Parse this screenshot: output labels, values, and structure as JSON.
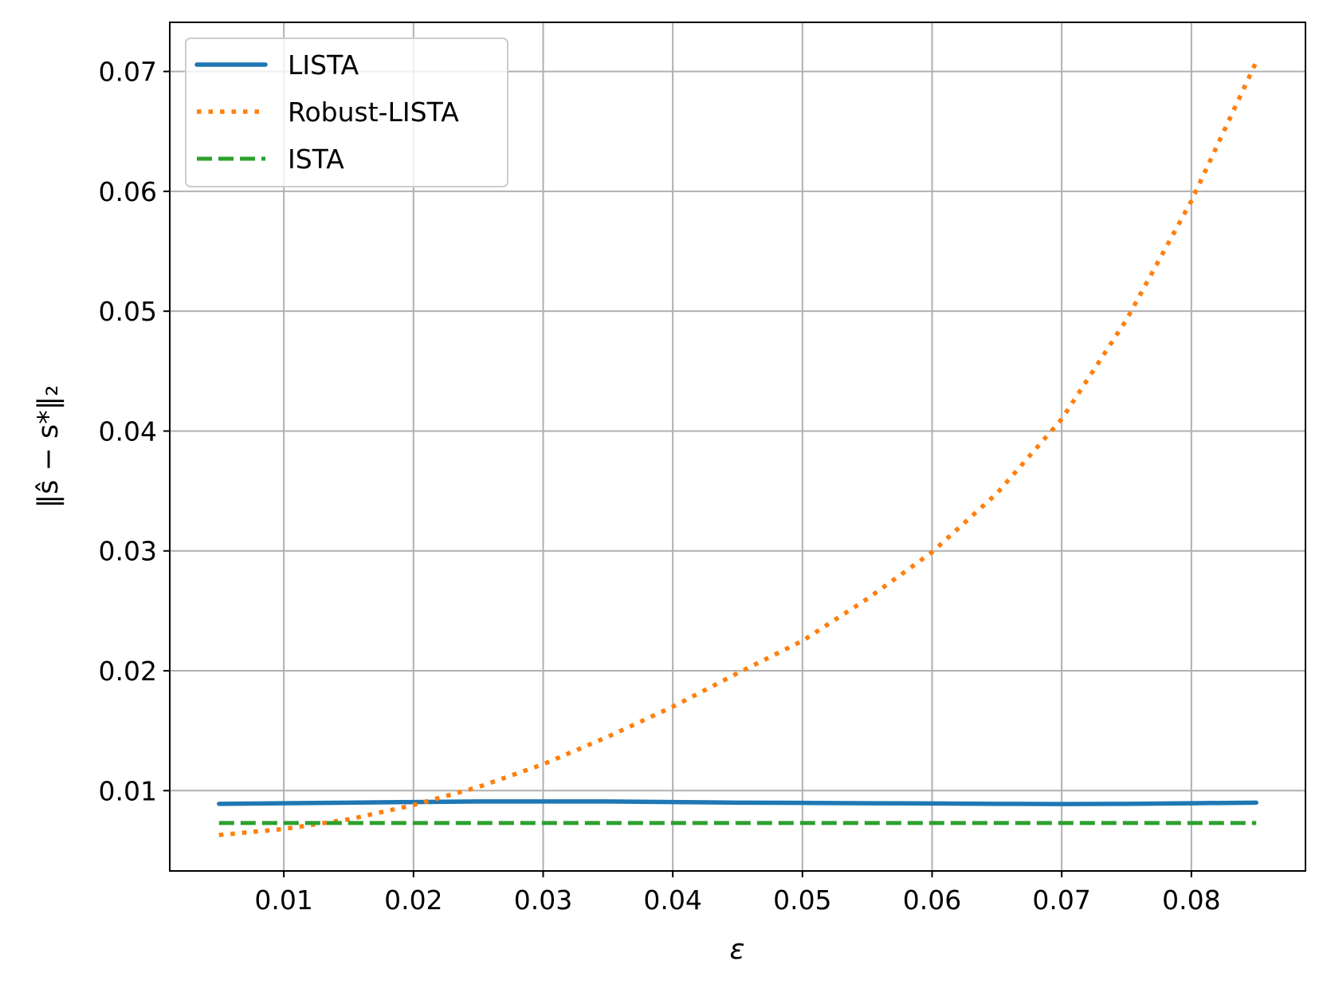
{
  "chart_data": {
    "type": "line",
    "xlabel": "ε",
    "ylabel": "‖ŝ − s*‖₂",
    "xlim": [
      0.0012,
      0.0888
    ],
    "ylim": [
      0.0033,
      0.0741
    ],
    "xticks": [
      0.01,
      0.02,
      0.03,
      0.04,
      0.05,
      0.06,
      0.07,
      0.08
    ],
    "xtick_labels": [
      "0.01",
      "0.02",
      "0.03",
      "0.04",
      "0.05",
      "0.06",
      "0.07",
      "0.08"
    ],
    "yticks": [
      0.01,
      0.02,
      0.03,
      0.04,
      0.05,
      0.06,
      0.07
    ],
    "ytick_labels": [
      "0.01",
      "0.02",
      "0.03",
      "0.04",
      "0.05",
      "0.06",
      "0.07"
    ],
    "grid": true,
    "legend_position": "top-left",
    "x": [
      0.005,
      0.01,
      0.015,
      0.02,
      0.025,
      0.03,
      0.035,
      0.04,
      0.045,
      0.05,
      0.055,
      0.06,
      0.065,
      0.07,
      0.075,
      0.08,
      0.085
    ],
    "series": [
      {
        "name": "LISTA",
        "color": "#1f77b4",
        "style": "solid",
        "values": [
          0.0089,
          0.00895,
          0.009,
          0.00905,
          0.0091,
          0.0091,
          0.0091,
          0.00905,
          0.009,
          0.00898,
          0.00895,
          0.00893,
          0.0089,
          0.00888,
          0.0089,
          0.00895,
          0.009
        ]
      },
      {
        "name": "Robust-LISTA",
        "color": "#ff7f0e",
        "style": "dotted",
        "values": [
          0.0063,
          0.0068,
          0.0076,
          0.0088,
          0.0103,
          0.0122,
          0.0145,
          0.017,
          0.0198,
          0.0225,
          0.026,
          0.0299,
          0.0348,
          0.041,
          0.0493,
          0.0592,
          0.0708
        ]
      },
      {
        "name": "ISTA",
        "color": "#2ca02c",
        "style": "dashed",
        "values": [
          0.0073,
          0.0073,
          0.0073,
          0.0073,
          0.0073,
          0.0073,
          0.0073,
          0.0073,
          0.0073,
          0.0073,
          0.0073,
          0.0073,
          0.0073,
          0.0073,
          0.0073,
          0.0073,
          0.0073
        ]
      }
    ]
  }
}
